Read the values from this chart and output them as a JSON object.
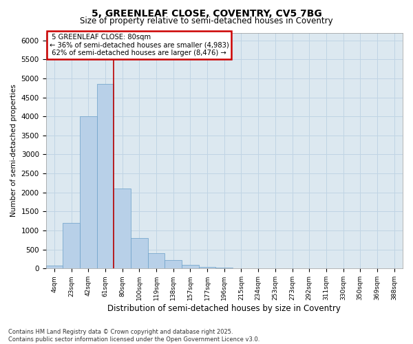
{
  "title_line1": "5, GREENLEAF CLOSE, COVENTRY, CV5 7BG",
  "title_line2": "Size of property relative to semi-detached houses in Coventry",
  "xlabel": "Distribution of semi-detached houses by size in Coventry",
  "ylabel": "Number of semi-detached properties",
  "bin_labels": [
    "4sqm",
    "23sqm",
    "42sqm",
    "61sqm",
    "80sqm",
    "100sqm",
    "119sqm",
    "138sqm",
    "157sqm",
    "177sqm",
    "196sqm",
    "215sqm",
    "234sqm",
    "253sqm",
    "273sqm",
    "292sqm",
    "311sqm",
    "330sqm",
    "350sqm",
    "369sqm",
    "388sqm"
  ],
  "bar_heights": [
    80,
    1200,
    4000,
    4850,
    2100,
    800,
    400,
    220,
    100,
    50,
    20,
    5,
    0,
    0,
    0,
    0,
    0,
    0,
    0,
    0,
    0
  ],
  "bar_color": "#b8d0e8",
  "bar_edge_color": "#6a9fc8",
  "vline_x": 3.5,
  "vline_color": "#bb0000",
  "property_label": "5 GREENLEAF CLOSE: 80sqm",
  "smaller_pct": "36%",
  "smaller_count": "4,983",
  "larger_pct": "62%",
  "larger_count": "8,476",
  "annotation_box_color": "#cc0000",
  "ylim": [
    0,
    6200
  ],
  "yticks": [
    0,
    500,
    1000,
    1500,
    2000,
    2500,
    3000,
    3500,
    4000,
    4500,
    5000,
    5500,
    6000
  ],
  "grid_color": "#c0d4e4",
  "background_color": "#dce8f0",
  "footnote": "Contains HM Land Registry data © Crown copyright and database right 2025.\nContains public sector information licensed under the Open Government Licence v3.0."
}
